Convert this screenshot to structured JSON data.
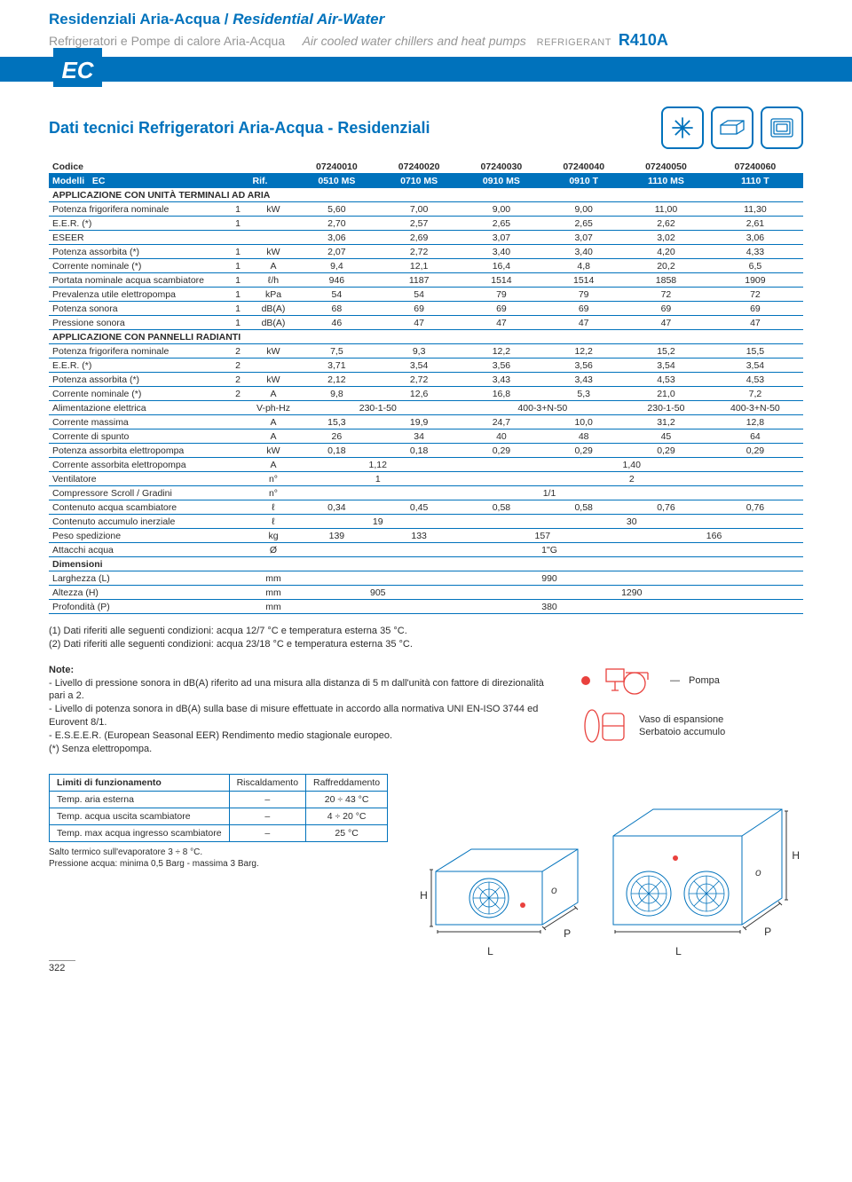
{
  "header": {
    "line1_it": "Residenziali Aria-Acqua /",
    "line1_en": "Residential Air-Water",
    "line2_it": "Refrigeratori e Pompe di calore Aria-Acqua",
    "line2_en": "Air cooled water chillers and heat pumps",
    "refrigerant_label": "REFRIGERANT",
    "refrigerant": "R410A",
    "ec": "EC"
  },
  "section_title": "Dati tecnici Refrigeratori Aria-Acqua - Residenziali",
  "table": {
    "codice_label": "Codice",
    "codice": [
      "07240010",
      "07240020",
      "07240030",
      "07240040",
      "07240050",
      "07240060"
    ],
    "modelli_label": "Modelli",
    "modelli_series": "EC",
    "rif": "Rif.",
    "models": [
      "0510 MS",
      "0710 MS",
      "0910 MS",
      "0910 T",
      "1110 MS",
      "1110 T"
    ],
    "sub1": "APPLICAZIONE CON UNITÀ TERMINALI AD ARIA",
    "rows1": [
      {
        "label": "Potenza frigorifera nominale",
        "idx": "1",
        "unit": "kW",
        "v": [
          "5,60",
          "7,00",
          "9,00",
          "9,00",
          "11,00",
          "11,30"
        ]
      },
      {
        "label": "E.E.R.  (*)",
        "idx": "1",
        "unit": "",
        "v": [
          "2,70",
          "2,57",
          "2,65",
          "2,65",
          "2,62",
          "2,61"
        ]
      },
      {
        "label": "ESEER",
        "idx": "",
        "unit": "",
        "v": [
          "3,06",
          "2,69",
          "3,07",
          "3,07",
          "3,02",
          "3,06"
        ]
      },
      {
        "label": "Potenza assorbita   (*)",
        "idx": "1",
        "unit": "kW",
        "v": [
          "2,07",
          "2,72",
          "3,40",
          "3,40",
          "4,20",
          "4,33"
        ]
      },
      {
        "label": "Corrente nominale  (*)",
        "idx": "1",
        "unit": "A",
        "v": [
          "9,4",
          "12,1",
          "16,4",
          "4,8",
          "20,2",
          "6,5"
        ]
      },
      {
        "label": "Portata nominale acqua scambiatore",
        "idx": "1",
        "unit": "ℓ/h",
        "v": [
          "946",
          "1187",
          "1514",
          "1514",
          "1858",
          "1909"
        ]
      },
      {
        "label": "Prevalenza utile elettropompa",
        "idx": "1",
        "unit": "kPa",
        "v": [
          "54",
          "54",
          "79",
          "79",
          "72",
          "72"
        ]
      },
      {
        "label": "Potenza sonora",
        "idx": "1",
        "unit": "dB(A)",
        "v": [
          "68",
          "69",
          "69",
          "69",
          "69",
          "69"
        ]
      },
      {
        "label": "Pressione sonora",
        "idx": "1",
        "unit": "dB(A)",
        "v": [
          "46",
          "47",
          "47",
          "47",
          "47",
          "47"
        ]
      }
    ],
    "sub2": "APPLICAZIONE CON PANNELLI RADIANTI",
    "rows2": [
      {
        "label": "Potenza frigorifera nominale",
        "idx": "2",
        "unit": "kW",
        "v": [
          "7,5",
          "9,3",
          "12,2",
          "12,2",
          "15,2",
          "15,5"
        ]
      },
      {
        "label": "E.E.R.  (*)",
        "idx": "2",
        "unit": "",
        "v": [
          "3,71",
          "3,54",
          "3,56",
          "3,56",
          "3,54",
          "3,54"
        ]
      },
      {
        "label": "Potenza assorbita   (*)",
        "idx": "2",
        "unit": "kW",
        "v": [
          "2,12",
          "2,72",
          "3,43",
          "3,43",
          "4,53",
          "4,53"
        ]
      },
      {
        "label": "Corrente nominale  (*)",
        "idx": "2",
        "unit": "A",
        "v": [
          "9,8",
          "12,6",
          "16,8",
          "5,3",
          "21,0",
          "7,2"
        ]
      }
    ],
    "rows3_mixed": [
      {
        "label": "Alimentazione elettrica",
        "idx": "",
        "unit": "V-ph-Hz",
        "cells": [
          {
            "span": 2,
            "val": "230-1-50"
          },
          {
            "span": 2,
            "val": "400-3+N-50"
          },
          {
            "span": 1,
            "val": "230-1-50"
          },
          {
            "span": 1,
            "val": "400-3+N-50"
          }
        ]
      },
      {
        "label": "Corrente massima",
        "idx": "",
        "unit": "A",
        "cells": [
          {
            "span": 1,
            "val": "15,3"
          },
          {
            "span": 1,
            "val": "19,9"
          },
          {
            "span": 1,
            "val": "24,7"
          },
          {
            "span": 1,
            "val": "10,0"
          },
          {
            "span": 1,
            "val": "31,2"
          },
          {
            "span": 1,
            "val": "12,8"
          }
        ]
      },
      {
        "label": "Corrente di spunto",
        "idx": "",
        "unit": "A",
        "cells": [
          {
            "span": 1,
            "val": "26"
          },
          {
            "span": 1,
            "val": "34"
          },
          {
            "span": 1,
            "val": "40"
          },
          {
            "span": 1,
            "val": "48"
          },
          {
            "span": 1,
            "val": "45"
          },
          {
            "span": 1,
            "val": "64"
          }
        ]
      },
      {
        "label": "Potenza assorbita elettropompa",
        "idx": "",
        "unit": "kW",
        "cells": [
          {
            "span": 1,
            "val": "0,18"
          },
          {
            "span": 1,
            "val": "0,18"
          },
          {
            "span": 1,
            "val": "0,29"
          },
          {
            "span": 1,
            "val": "0,29"
          },
          {
            "span": 1,
            "val": "0,29"
          },
          {
            "span": 1,
            "val": "0,29"
          }
        ]
      },
      {
        "label": "Corrente assorbita elettropompa",
        "idx": "",
        "unit": "A",
        "cells": [
          {
            "span": 2,
            "val": "1,12"
          },
          {
            "span": 4,
            "val": "1,40"
          }
        ]
      },
      {
        "label": "Ventilatore",
        "idx": "",
        "unit": "n°",
        "cells": [
          {
            "span": 2,
            "val": "1"
          },
          {
            "span": 4,
            "val": "2"
          }
        ]
      },
      {
        "label": "Compressore Scroll / Gradini",
        "idx": "",
        "unit": "n°",
        "cells": [
          {
            "span": 6,
            "val": "1/1"
          }
        ]
      },
      {
        "label": "Contenuto acqua scambiatore",
        "idx": "",
        "unit": "ℓ",
        "cells": [
          {
            "span": 1,
            "val": "0,34"
          },
          {
            "span": 1,
            "val": "0,45"
          },
          {
            "span": 1,
            "val": "0,58"
          },
          {
            "span": 1,
            "val": "0,58"
          },
          {
            "span": 1,
            "val": "0,76"
          },
          {
            "span": 1,
            "val": "0,76"
          }
        ]
      },
      {
        "label": "Contenuto accumulo inerziale",
        "idx": "",
        "unit": "ℓ",
        "cells": [
          {
            "span": 2,
            "val": "19"
          },
          {
            "span": 4,
            "val": "30"
          }
        ]
      },
      {
        "label": "Peso spedizione",
        "idx": "",
        "unit": "kg",
        "cells": [
          {
            "span": 1,
            "val": "139"
          },
          {
            "span": 1,
            "val": "133"
          },
          {
            "span": 2,
            "val": "157"
          },
          {
            "span": 2,
            "val": "166"
          }
        ]
      },
      {
        "label": "Attacchi acqua",
        "idx": "",
        "unit": "Ø",
        "cells": [
          {
            "span": 6,
            "val": "1\"G"
          }
        ]
      }
    ],
    "sub3": "Dimensioni",
    "dims_rows": [
      {
        "label": "Larghezza (L)",
        "unit": "mm",
        "cells": [
          {
            "span": 6,
            "val": "990"
          }
        ]
      },
      {
        "label": "Altezza (H)",
        "unit": "mm",
        "cells": [
          {
            "span": 2,
            "val": "905"
          },
          {
            "span": 4,
            "val": "1290"
          }
        ]
      },
      {
        "label": "Profondità (P)",
        "unit": "mm",
        "cells": [
          {
            "span": 6,
            "val": "380"
          }
        ]
      }
    ]
  },
  "footnotes": [
    "(1)   Dati riferiti alle seguenti condizioni: acqua 12/7 °C e temperatura esterna 35 °C.",
    "(2)   Dati riferiti alle seguenti condizioni: acqua 23/18 °C e temperatura esterna 35 °C."
  ],
  "notes_title": "Note:",
  "notes_items": [
    "-  Livello di pressione sonora in dB(A) riferito ad una misura alla distanza di 5 m dall'unità con fattore di direzionalità pari a 2.",
    "-  Livello di potenza sonora in dB(A) sulla base di misure effettuate in accordo alla normativa UNI EN-ISO 3744 ed Eurovent 8/1.",
    "-  E.S.E.E.R. (European Seasonal EER) Rendimento medio stagionale europeo.",
    "(*) Senza elettropompa."
  ],
  "diag_labels": {
    "pompa": "Pompa",
    "vaso": "Vaso di espansione",
    "serbatoio": "Serbatoio accumulo"
  },
  "limits": {
    "title": "Limiti di funzionamento",
    "cols": [
      "Riscaldamento",
      "Raffreddamento"
    ],
    "rows": [
      {
        "l": "Temp. aria esterna",
        "v": [
          "–",
          "20 ÷ 43 °C"
        ]
      },
      {
        "l": "Temp. acqua uscita scambiatore",
        "v": [
          "–",
          "4 ÷ 20 °C"
        ]
      },
      {
        "l": "Temp. max acqua ingresso scambiatore",
        "v": [
          "–",
          "25 °C"
        ]
      }
    ],
    "foot": [
      "Salto termico sull'evaporatore 3 ÷ 8 °C.",
      "Pressione acqua: minima 0,5 Barg - massima 3 Barg."
    ]
  },
  "dim_labels": {
    "H": "H",
    "L": "L",
    "P": "P"
  },
  "page_num": "322",
  "colors": {
    "blue": "#0072bc",
    "grey": "#969696"
  }
}
